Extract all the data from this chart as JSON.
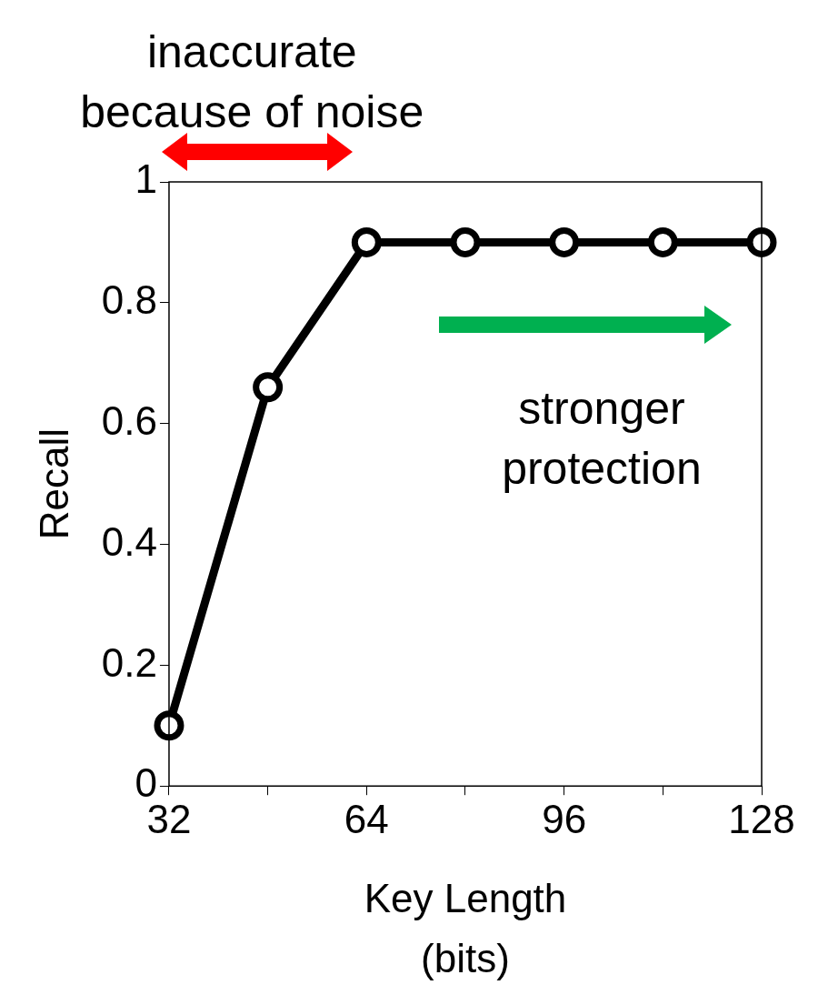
{
  "chart_data": {
    "type": "line",
    "xlabel": "Key Length\n(bits)",
    "ylabel": "Recall",
    "annotations": [
      "inaccurate\nbecause of noise",
      "stronger\nprotection"
    ],
    "x": [
      32,
      48,
      64,
      80,
      96,
      112,
      128
    ],
    "series": [
      {
        "color": "#000000",
        "values": [
          0.1,
          0.66,
          0.9,
          0.9,
          0.9,
          0.9,
          0.9
        ]
      }
    ],
    "xlim": [
      32,
      128
    ],
    "xticks": [
      32,
      {
        "value": 48,
        "label": null
      },
      64,
      {
        "value": 80,
        "label": null
      },
      96,
      {
        "value": 112,
        "label": null
      },
      128
    ],
    "ylim": [
      0,
      1
    ],
    "yticks": [
      0,
      0.2,
      0.4,
      0.6,
      0.8,
      1
    ],
    "marker": "circle",
    "line_style": "solid",
    "grid": false,
    "legend": false
  }
}
